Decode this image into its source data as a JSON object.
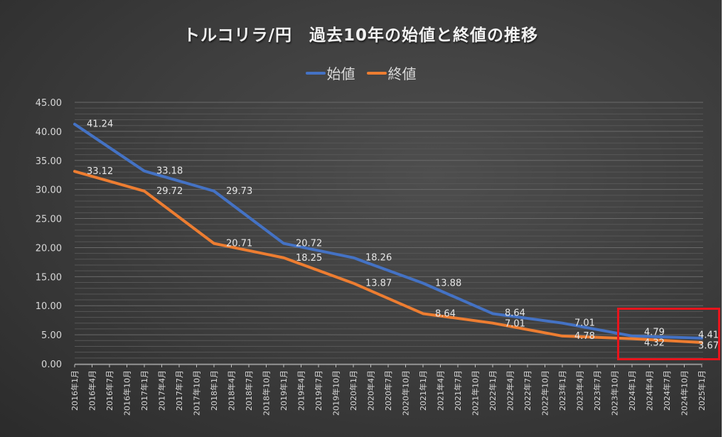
{
  "chart_data": {
    "type": "line",
    "title": "トルコリラ/円　過去10年の始値と終値の推移",
    "xlabel": "",
    "ylabel": "",
    "ylim": [
      0,
      45
    ],
    "y_ticks": [
      "0.00",
      "5.00",
      "10.00",
      "15.00",
      "20.00",
      "25.00",
      "30.00",
      "35.00",
      "40.00",
      "45.00"
    ],
    "grid": true,
    "legend_position": "top",
    "categories": [
      "2016年1月",
      "2016年4月",
      "2016年7月",
      "2016年10月",
      "2017年1月",
      "2017年4月",
      "2017年7月",
      "2017年10月",
      "2018年1月",
      "2018年4月",
      "2018年7月",
      "2018年10月",
      "2019年1月",
      "2019年4月",
      "2019年7月",
      "2019年10月",
      "2020年1月",
      "2020年4月",
      "2020年7月",
      "2020年10月",
      "2021年1月",
      "2021年4月",
      "2021年7月",
      "2021年10月",
      "2022年1月",
      "2022年4月",
      "2022年7月",
      "2022年10月",
      "2023年1月",
      "2023年4月",
      "2023年7月",
      "2023年10月",
      "2024年1月",
      "2024年4月",
      "2024年7月",
      "2024年10月",
      "2025年1月"
    ],
    "series": [
      {
        "name": "始値",
        "color": "#4472c4",
        "points": [
          {
            "x": "2016年1月",
            "y": 41.24,
            "label": "41.24"
          },
          {
            "x": "2017年1月",
            "y": 33.18,
            "label": "33.18"
          },
          {
            "x": "2018年1月",
            "y": 29.73,
            "label": "29.73"
          },
          {
            "x": "2019年1月",
            "y": 20.72,
            "label": "20.72"
          },
          {
            "x": "2020年1月",
            "y": 18.26,
            "label": "18.26"
          },
          {
            "x": "2021年1月",
            "y": 13.88,
            "label": "13.88"
          },
          {
            "x": "2022年1月",
            "y": 8.64,
            "label": "8.64"
          },
          {
            "x": "2023年1月",
            "y": 7.01,
            "label": "7.01"
          },
          {
            "x": "2024年1月",
            "y": 4.79,
            "label": "4.79"
          },
          {
            "x": "2025年1月",
            "y": 4.41,
            "label": "4.41"
          }
        ]
      },
      {
        "name": "終値",
        "color": "#ed7d31",
        "points": [
          {
            "x": "2016年1月",
            "y": 33.12,
            "label": "33.12"
          },
          {
            "x": "2017年1月",
            "y": 29.72,
            "label": "29.72"
          },
          {
            "x": "2018年1月",
            "y": 20.71,
            "label": "20.71"
          },
          {
            "x": "2019年1月",
            "y": 18.25,
            "label": "18.25"
          },
          {
            "x": "2020年1月",
            "y": 13.87,
            "label": "13.87"
          },
          {
            "x": "2021年1月",
            "y": 8.64,
            "label": "8.64"
          },
          {
            "x": "2022年1月",
            "y": 7.01,
            "label": "7.01"
          },
          {
            "x": "2023年1月",
            "y": 4.78,
            "label": "4.78"
          },
          {
            "x": "2024年1月",
            "y": 4.32,
            "label": "4.32"
          },
          {
            "x": "2025年1月",
            "y": 3.67,
            "label": "3.67"
          }
        ]
      }
    ],
    "annotations": [
      {
        "type": "highlight-box",
        "color": "#e8141c",
        "covers": [
          "2024年1月",
          "2025年1月"
        ]
      }
    ]
  }
}
